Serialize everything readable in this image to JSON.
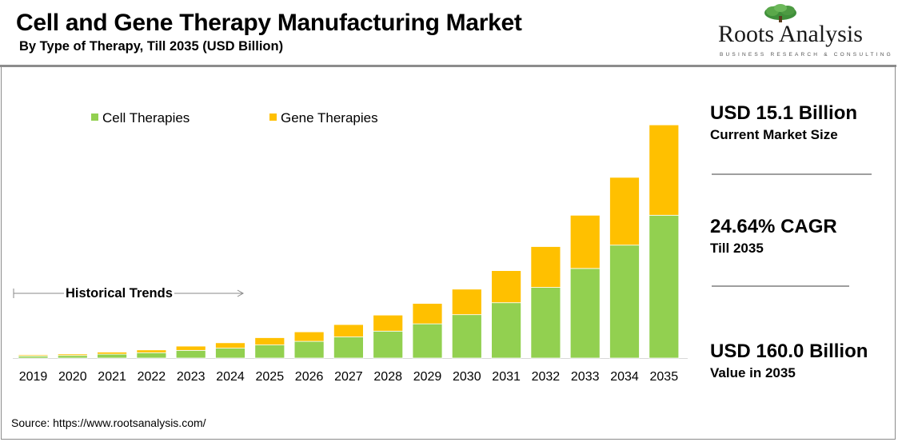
{
  "header": {
    "title": "Cell and Gene Therapy Manufacturing Market",
    "subtitle": "By Type of Therapy, Till 2035 (USD Billion)"
  },
  "logo": {
    "name": "Roots Analysis",
    "tagline": "BUSINESS RESEARCH & CONSULTING"
  },
  "annotation": {
    "historical_label": "Historical Trends"
  },
  "stats": {
    "current": {
      "value": "USD 15.1 Billion",
      "label": "Current Market Size"
    },
    "cagr": {
      "value": "24.64% CAGR",
      "label": "Till 2035"
    },
    "future": {
      "value": "USD 160.0 Billion",
      "label": "Value in 2035"
    }
  },
  "source": "Source: https://www.rootsanalysis.com/",
  "colors": {
    "cell": "#92d050",
    "gene": "#ffc000",
    "frame": "#8c8c8c",
    "divider": "#9e9e9e"
  },
  "chart_data": {
    "type": "bar",
    "stacked": true,
    "categories": [
      "2019",
      "2020",
      "2021",
      "2022",
      "2023",
      "2024",
      "2025",
      "2026",
      "2027",
      "2028",
      "2029",
      "2030",
      "2031",
      "2032",
      "2033",
      "2034",
      "2035"
    ],
    "series": [
      {
        "name": "Cell Therapies",
        "color": "#92d050",
        "values": [
          1.4,
          1.8,
          2.7,
          3.7,
          5.3,
          6.8,
          9.0,
          11.5,
          14.5,
          18.5,
          23.5,
          29.8,
          38.0,
          48.5,
          61.5,
          77.5,
          98.0
        ]
      },
      {
        "name": "Gene Therapies",
        "color": "#ffc000",
        "values": [
          0.8,
          1.0,
          1.4,
          1.9,
          2.9,
          3.7,
          5.0,
          6.5,
          8.5,
          11.0,
          14.0,
          17.5,
          22.0,
          28.0,
          36.5,
          46.5,
          62.0
        ]
      }
    ],
    "ylim": [
      0,
      170
    ],
    "grid": false,
    "legend": "top-left"
  }
}
